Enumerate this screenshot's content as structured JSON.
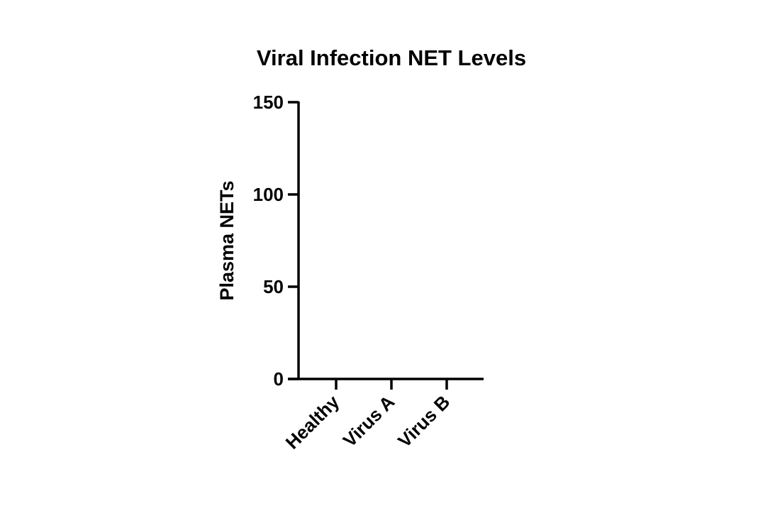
{
  "chart_data": {
    "type": "scatter",
    "title": "Viral Infection NET Levels",
    "xlabel": "",
    "ylabel": "Plasma NETs",
    "categories": [
      "Healthy",
      "Virus A",
      "Virus B"
    ],
    "series": [],
    "ylim": [
      0,
      150
    ],
    "yticks": [
      "0",
      "50",
      "100",
      "150"
    ],
    "grid": false,
    "axis_color": "#000000"
  }
}
